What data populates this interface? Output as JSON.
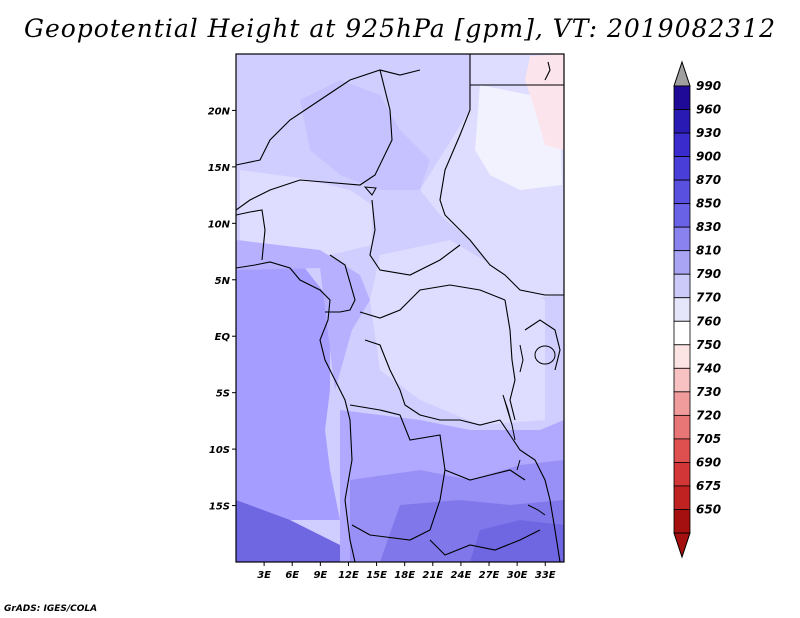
{
  "title": "Geopotential Height at 925hPa [gpm], VT: 2019082312",
  "credit": "GrADS: IGES/COLA",
  "map": {
    "lat_labels": [
      "20N",
      "15N",
      "10N",
      "5N",
      "EQ",
      "5S",
      "10S",
      "15S"
    ],
    "lat_values": [
      20,
      15,
      10,
      5,
      0,
      -5,
      -10,
      -15
    ],
    "lon_labels": [
      "3E",
      "6E",
      "9E",
      "12E",
      "15E",
      "18E",
      "21E",
      "24E",
      "27E",
      "30E",
      "33E"
    ],
    "lon_values": [
      3,
      6,
      9,
      12,
      15,
      18,
      21,
      24,
      27,
      30,
      33
    ],
    "lon_range": [
      0,
      35
    ],
    "lat_range": [
      -20,
      25
    ]
  },
  "colorbar": {
    "labels": [
      "990",
      "960",
      "930",
      "900",
      "870",
      "850",
      "830",
      "810",
      "790",
      "770",
      "760",
      "750",
      "740",
      "730",
      "720",
      "705",
      "690",
      "675",
      "650"
    ],
    "colors": [
      "#1e0a96",
      "#2a1ab4",
      "#3a2ccc",
      "#4a3ed8",
      "#5a50e0",
      "#6a62e6",
      "#8a82ee",
      "#aaa4f4",
      "#cccaf8",
      "#e6e6fb",
      "#ffffff",
      "#fde4e4",
      "#f8c2c2",
      "#f09c9c",
      "#e87676",
      "#de5050",
      "#d23636",
      "#c02222",
      "#a41010"
    ],
    "top_arrow_color": "#a0a0a0"
  }
}
